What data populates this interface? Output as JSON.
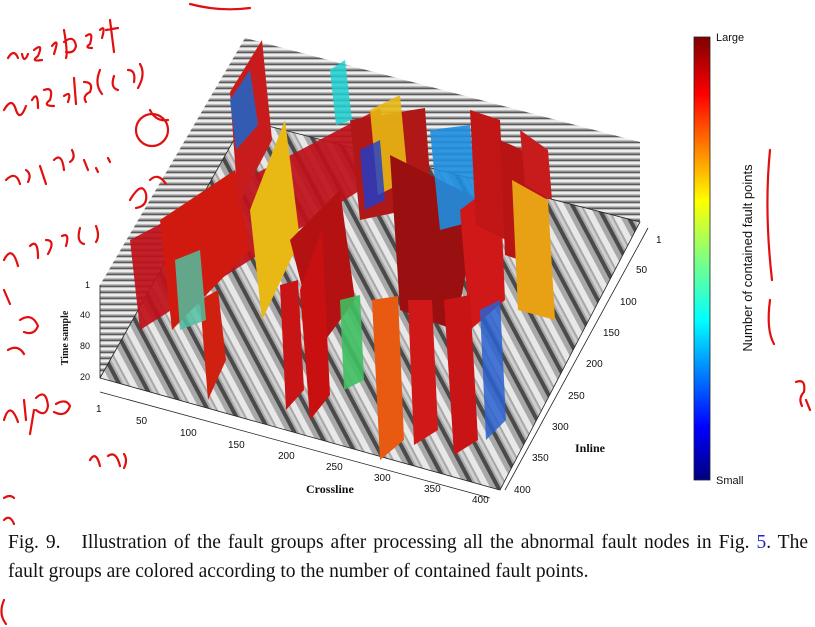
{
  "figure": {
    "colorbar": {
      "label": "Number of contained fault points",
      "top_label": "Large",
      "bottom_label": "Small"
    },
    "axes": {
      "crossline": {
        "label": "Crossline",
        "ticks": [
          "1",
          "50",
          "100",
          "150",
          "200",
          "250",
          "300",
          "350",
          "400"
        ]
      },
      "inline": {
        "label": "Inline",
        "ticks": [
          "1",
          "50",
          "100",
          "150",
          "200",
          "250",
          "300",
          "350",
          "400"
        ]
      },
      "time": {
        "label": "Time sample",
        "ticks": [
          "1",
          "40",
          "80",
          "20"
        ]
      }
    }
  },
  "caption": {
    "fig_label": "Fig. 9.",
    "text_before_ref": "Illustration of the fault groups after processing all the abnormal fault nodes in Fig.",
    "ref": "5",
    "text_after_ref": ". The fault groups are colored according to the number of contained fault points."
  },
  "annotations": {
    "color": "#e01010"
  }
}
